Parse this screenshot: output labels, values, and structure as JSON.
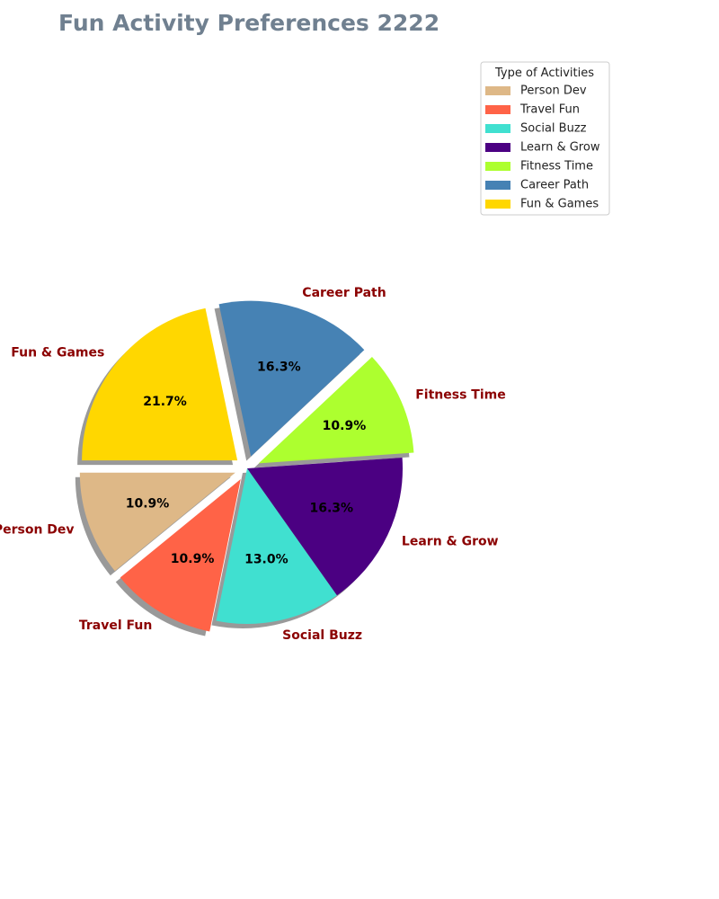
{
  "chart_data": {
    "type": "pie",
    "title": "Fun Activity Preferences 2222",
    "title_color": "#708090",
    "label_color": "#8b0000",
    "legend": {
      "title": "Type of Activities",
      "placement": "top-right"
    },
    "start_angle_deg": 180,
    "direction": "counterclockwise",
    "shadow": true,
    "slices": [
      {
        "label": "Person Dev",
        "value": 10.9,
        "pct_label": "10.9%",
        "color": "#deb887",
        "exploded": true
      },
      {
        "label": "Travel Fun",
        "value": 10.9,
        "pct_label": "10.9%",
        "color": "#ff6347",
        "exploded": true
      },
      {
        "label": "Social Buzz",
        "value": 13.0,
        "pct_label": "13.0%",
        "color": "#40e0d0",
        "exploded": false
      },
      {
        "label": "Learn & Grow",
        "value": 16.3,
        "pct_label": "16.3%",
        "color": "#4b0082",
        "exploded": false
      },
      {
        "label": "Fitness Time",
        "value": 10.9,
        "pct_label": "10.9%",
        "color": "#adff2f",
        "exploded": true
      },
      {
        "label": "Career Path",
        "value": 16.3,
        "pct_label": "16.3%",
        "color": "#4682b4",
        "exploded": true
      },
      {
        "label": "Fun & Games",
        "value": 21.7,
        "pct_label": "21.7%",
        "color": "#ffd700",
        "exploded": true
      }
    ]
  }
}
